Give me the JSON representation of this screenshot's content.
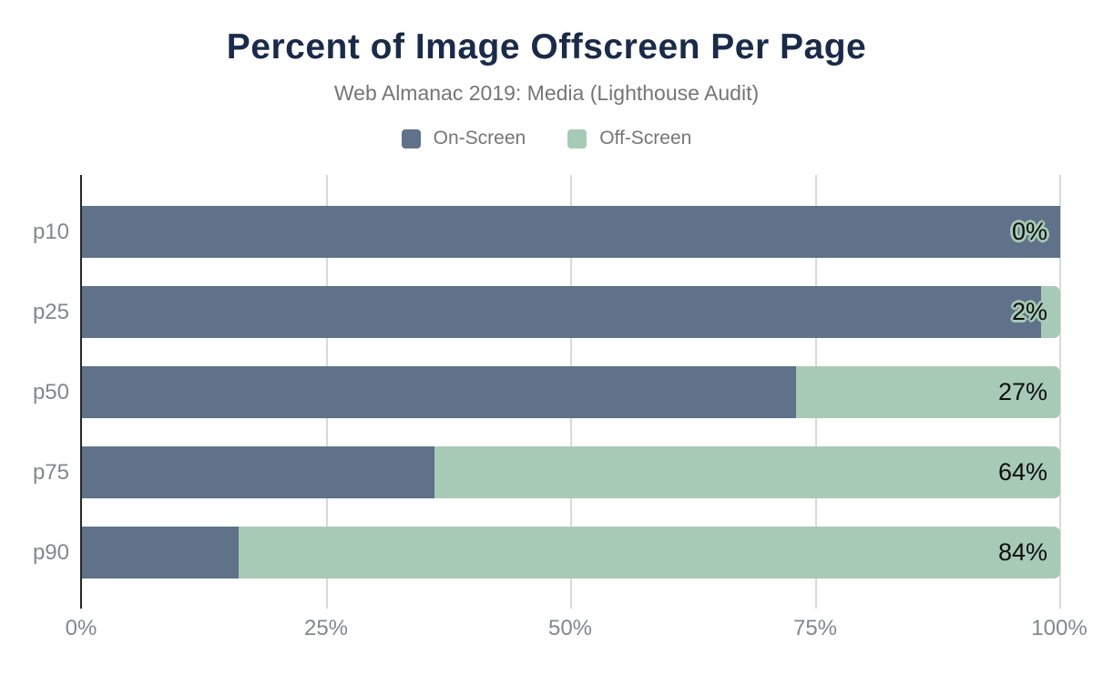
{
  "chart_data": {
    "type": "bar",
    "orientation": "horizontal",
    "stacked": true,
    "title": "Percent of Image Offscreen Per Page",
    "subtitle": "Web Almanac 2019: Media (Lighthouse Audit)",
    "categories": [
      "p10",
      "p25",
      "p50",
      "p75",
      "p90"
    ],
    "series": [
      {
        "name": "On-Screen",
        "color": "#60718a",
        "values": [
          100,
          98,
          73,
          36,
          16
        ]
      },
      {
        "name": "Off-Screen",
        "color": "#a7cab7",
        "values": [
          0,
          2,
          27,
          64,
          84
        ]
      }
    ],
    "data_labels": [
      "0%",
      "2%",
      "27%",
      "64%",
      "84%"
    ],
    "x_ticks": [
      "0%",
      "25%",
      "50%",
      "75%",
      "100%"
    ],
    "x_tick_values": [
      0,
      25,
      50,
      75,
      100
    ],
    "xlim": [
      0,
      100
    ],
    "grid": true,
    "legend_position": "top",
    "colors": {
      "title": "#1a2b49",
      "subtitle": "#757575",
      "axis_line": "#262626",
      "gridline": "#d9d9d9",
      "tick_label": "#7f898d",
      "data_label": "#0e0e0e"
    }
  }
}
